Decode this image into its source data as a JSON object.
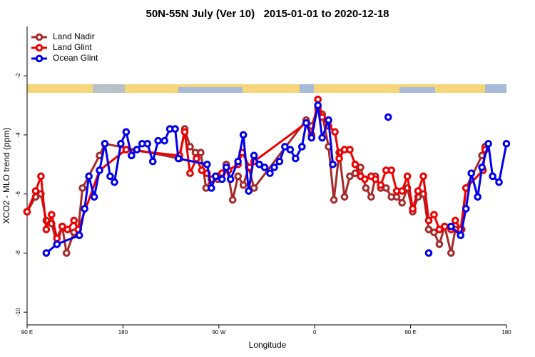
{
  "chart_data": {
    "type": "line",
    "title": "50N-55N July (Ver 10)   2015-01-01 to 2020-12-18",
    "x_label": "Longitude",
    "y_label": "XCO2 - MLO trend (ppm)",
    "xlim": [
      90,
      540
    ],
    "xticks": [
      {
        "value": 90,
        "label": "90 E"
      },
      180,
      {
        "value": 270,
        "label": "90 W"
      },
      {
        "value": 360,
        "label": "0"
      },
      {
        "value": 450,
        "label": "90 E"
      },
      {
        "value": 540,
        "label": "180"
      }
    ],
    "ylim": [
      -10.43,
      -0.33
    ],
    "yticks": [
      -2,
      -4,
      -6,
      -8,
      -10
    ],
    "legend": "top-left",
    "series": [
      {
        "name": "Land Nadir",
        "color": "#a52a2a",
        "x": [
          90,
          98,
          103,
          108,
          113,
          118,
          123,
          127,
          134,
          138,
          142,
          158,
          163,
          233,
          238,
          243,
          248,
          253,
          258,
          263,
          269,
          273,
          277,
          283,
          288,
          293,
          298,
          303,
          352,
          357,
          363,
          367,
          373,
          378,
          383,
          388,
          393,
          398,
          403,
          408,
          413,
          417,
          422,
          427,
          432,
          437,
          442,
          447,
          452,
          457,
          462,
          467,
          472,
          477,
          482,
          488,
          492,
          498,
          502,
          517,
          520
        ],
        "values": [
          -6.6,
          -6.1,
          -6.0,
          -6.9,
          -7.0,
          -7.7,
          -7.1,
          -8.0,
          -7.3,
          -7.2,
          -5.8,
          -4.7,
          -4.3,
          -4.8,
          -3.8,
          -4.4,
          -4.6,
          -4.6,
          -5.8,
          -5.5,
          -5.5,
          -5.3,
          -5.0,
          -6.2,
          -5.4,
          -5.7,
          -5.1,
          -5.8,
          -3.5,
          -3.7,
          -3.1,
          -3.3,
          -4.4,
          -6.2,
          -4.6,
          -6.1,
          -5.4,
          -5.3,
          -5.1,
          -5.8,
          -6.1,
          -5.4,
          -5.8,
          -5.8,
          -6.1,
          -6.1,
          -6.3,
          -5.8,
          -6.6,
          -6.1,
          -6.0,
          -7.2,
          -7.3,
          -7.7,
          -7.1,
          -8.0,
          -7.2,
          -7.2,
          -5.8,
          -4.7,
          -4.4
        ]
      },
      {
        "name": "Land Glint",
        "color": "#ee0000",
        "x": [
          90,
          98,
          103,
          108,
          113,
          118,
          123,
          128,
          134,
          138,
          158,
          183,
          233,
          238,
          243,
          249,
          254,
          259,
          263,
          269,
          273,
          279,
          288,
          292,
          299,
          303,
          352,
          357,
          363,
          367,
          373,
          379,
          383,
          388,
          393,
          398,
          403,
          407,
          413,
          417,
          422,
          427,
          432,
          437,
          442,
          447,
          452,
          457,
          462,
          467,
          472,
          477,
          482,
          488,
          492,
          497,
          502,
          518,
          520
        ],
        "values": [
          -6.6,
          -5.9,
          -5.4,
          -7.2,
          -6.7,
          -7.5,
          -7.1,
          -7.2,
          -6.9,
          -7.2,
          -5.2,
          -4.5,
          -4.7,
          -3.9,
          -5.3,
          -4.8,
          -5.2,
          -5.3,
          -5.5,
          -5.4,
          -5.3,
          -5.2,
          -5.0,
          -4.6,
          -5.1,
          -4.9,
          -3.6,
          -4.0,
          -2.8,
          -3.4,
          -3.7,
          -3.9,
          -4.8,
          -4.5,
          -4.5,
          -5.0,
          -5.4,
          -5.5,
          -5.4,
          -5.5,
          -5.7,
          -5.2,
          -5.2,
          -5.9,
          -5.9,
          -5.4,
          -6.5,
          -5.9,
          -5.4,
          -6.9,
          -6.7,
          -7.2,
          -7.1,
          -7.2,
          -6.9,
          -7.2,
          -5.8,
          -5.2,
          -4.5
        ]
      },
      {
        "name": "Ocean Glint",
        "color": "#0000ee",
        "x": [
          108,
          118,
          139,
          144,
          148,
          153,
          158,
          163,
          168,
          172,
          178,
          183,
          188,
          193,
          198,
          203,
          208,
          213,
          219,
          224,
          229,
          232,
          259,
          263,
          267,
          273,
          277,
          281,
          288,
          293,
          298,
          303,
          308,
          313,
          318,
          322,
          327,
          332,
          337,
          342,
          348,
          352,
          357,
          363,
          367,
          373,
          377,
          null,
          429,
          null,
          467,
          null,
          488,
          497,
          502,
          507,
          513,
          517,
          523,
          527,
          533,
          540
        ],
        "values": [
          -8.0,
          -7.7,
          -7.4,
          -6.5,
          -5.4,
          -6.1,
          -5.2,
          -4.3,
          -5.4,
          -5.6,
          -4.3,
          -3.9,
          -4.7,
          -4.5,
          -4.3,
          -4.3,
          -4.9,
          -4.2,
          -4.2,
          -3.8,
          -3.8,
          -4.8,
          -5.0,
          -5.8,
          -5.4,
          -5.5,
          -5.1,
          -5.5,
          -4.9,
          -4.0,
          -5.9,
          -4.7,
          -5.0,
          -5.1,
          -5.3,
          -5.1,
          -4.9,
          -4.4,
          -4.5,
          -4.8,
          -4.4,
          -3.6,
          -4.1,
          -3.0,
          -4.1,
          -3.5,
          -5.0,
          null,
          -3.4,
          null,
          -8.0,
          null,
          -7.1,
          -7.4,
          -6.5,
          -5.3,
          -6.1,
          -5.1,
          -4.3,
          -5.4,
          -5.6,
          -4.3
        ]
      }
    ]
  }
}
